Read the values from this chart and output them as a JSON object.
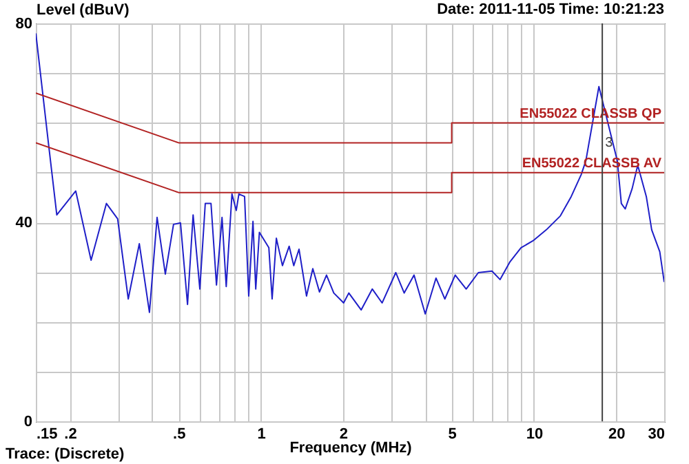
{
  "chart_data": {
    "type": "line",
    "xlabel": "Frequency (MHz)",
    "ylabel": "Level (dBuV)",
    "annotations": [
      "Date: 2011-11-05  Time: 10:21:23",
      "Trace: (Discrete)",
      {
        "text": "3",
        "x": 17.8,
        "y": 56
      }
    ],
    "log": "x",
    "grid": true,
    "xlim": [
      0.15,
      30
    ],
    "ylim": [
      0,
      80
    ],
    "xticks": [
      {
        "value": 0.15,
        "label": ".15"
      },
      {
        "value": 0.2,
        "label": ".2"
      },
      {
        "value": 0.3,
        "label": null
      },
      {
        "value": 0.4,
        "label": null
      },
      {
        "value": 0.5,
        "label": ".5"
      },
      {
        "value": 0.6,
        "label": null
      },
      {
        "value": 0.7,
        "label": null
      },
      {
        "value": 0.8,
        "label": null
      },
      {
        "value": 0.9,
        "label": null
      },
      1,
      2,
      {
        "value": 3,
        "label": null
      },
      {
        "value": 4,
        "label": null
      },
      5,
      {
        "value": 6,
        "label": null
      },
      {
        "value": 7,
        "label": null
      },
      {
        "value": 8,
        "label": null
      },
      {
        "value": 9,
        "label": null
      },
      10,
      20,
      30
    ],
    "yticks": [
      0,
      {
        "value": 10,
        "label": null
      },
      {
        "value": 20,
        "label": null
      },
      {
        "value": 30,
        "label": null
      },
      40,
      {
        "value": 50,
        "label": null
      },
      {
        "value": 60,
        "label": null
      },
      {
        "value": 70,
        "label": null
      },
      80
    ],
    "series": [
      {
        "color": "#1f1fc8",
        "x": [
          0.15,
          0.167,
          0.179,
          0.21,
          0.239,
          0.272,
          0.299,
          0.327,
          0.359,
          0.391,
          0.417,
          0.447,
          0.479,
          0.508,
          0.539,
          0.565,
          0.598,
          0.626,
          0.657,
          0.688,
          0.721,
          0.747,
          0.784,
          0.813,
          0.831,
          0.872,
          0.903,
          0.936,
          0.958,
          0.988,
          1.07,
          1.1,
          1.14,
          1.2,
          1.27,
          1.32,
          1.38,
          1.47,
          1.55,
          1.64,
          1.74,
          1.85,
          2.01,
          2.1,
          2.33,
          2.56,
          2.78,
          3.12,
          3.35,
          3.64,
          4.0,
          4.38,
          4.72,
          5.15,
          5.65,
          6.26,
          7.02,
          7.52,
          8.18,
          8.97,
          9.93,
          11.1,
          12.5,
          13.7,
          14.9,
          15.5,
          17.3,
          20.2,
          20.9,
          21.6,
          22.9,
          24.0,
          25.8,
          27.0,
          28.9,
          30
        ],
        "values": [
          78,
          55.7,
          41.5,
          46.3,
          32.4,
          43.8,
          40.7,
          24.6,
          35.7,
          21.9,
          41,
          29.6,
          39.6,
          39.9,
          23.5,
          41.5,
          26.6,
          43.8,
          43.8,
          27.4,
          41,
          27.1,
          45.7,
          42.4,
          45.7,
          45.2,
          25.2,
          40.2,
          26.6,
          38,
          34.9,
          24.6,
          36.8,
          31.3,
          35.2,
          31.3,
          34.6,
          25.2,
          30.7,
          26,
          29.4,
          25.8,
          23.8,
          25.8,
          22.4,
          26.6,
          23.8,
          29.9,
          25.8,
          29.4,
          21.6,
          28.8,
          24.6,
          29.4,
          26.6,
          29.9,
          30.2,
          28.5,
          32.1,
          34.9,
          36.3,
          38.5,
          41.3,
          45.2,
          49.6,
          52.4,
          67.3,
          52.4,
          43.8,
          42.7,
          46.8,
          51.5,
          45.2,
          38.5,
          34.1,
          28
        ]
      },
      {
        "name": "EN55022 CLASSB QP",
        "color": "#b22222",
        "x": [
          0.15,
          0.5,
          5,
          5,
          30
        ],
        "values": [
          66,
          56,
          56,
          60,
          60
        ]
      },
      {
        "name": "EN55022 CLASSB AV",
        "color": "#b22222",
        "x": [
          0.15,
          0.5,
          5,
          5,
          30
        ],
        "values": [
          56,
          46,
          46,
          50,
          50
        ]
      }
    ],
    "ref_lines": [
      {
        "axis": "x",
        "value": 17.8,
        "color": "#404040"
      }
    ]
  }
}
